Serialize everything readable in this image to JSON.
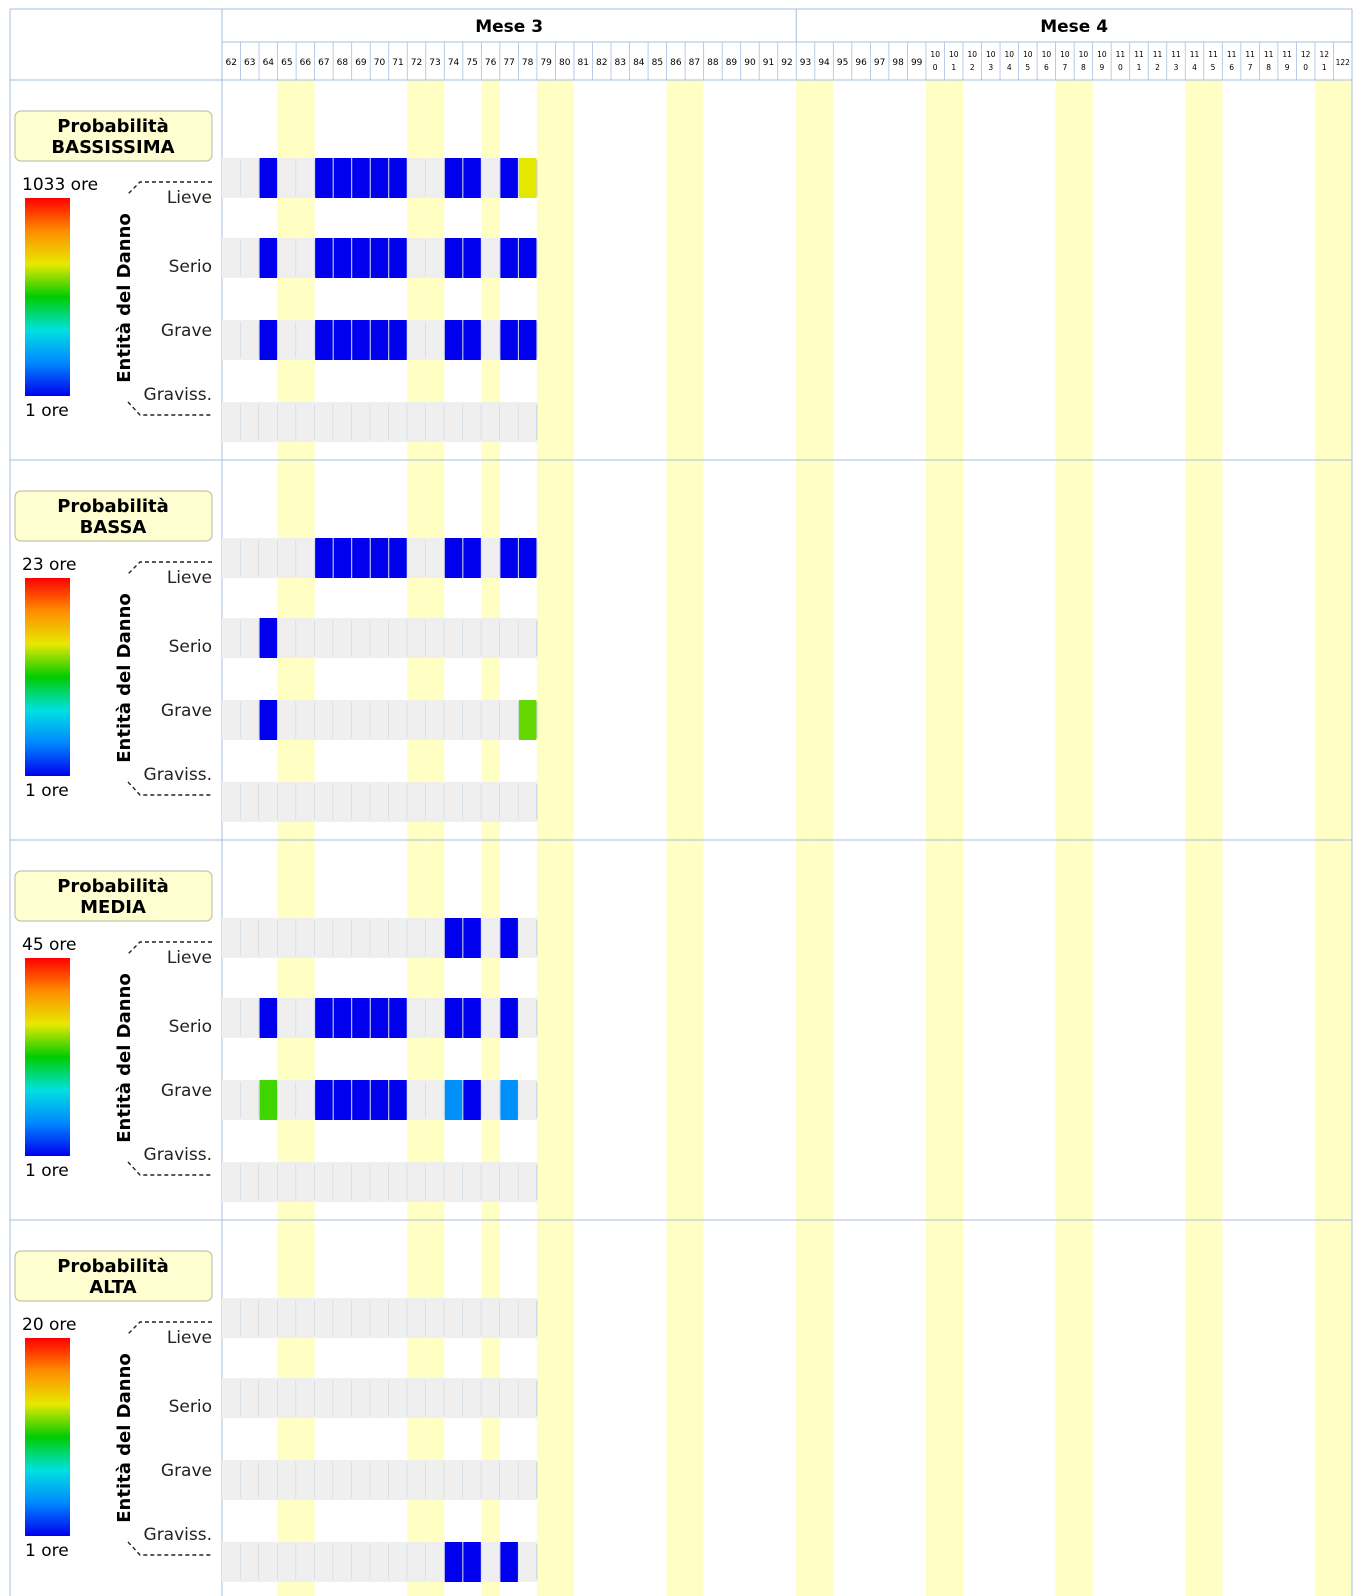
{
  "colors": {
    "weekend": "#ffffc4",
    "empty_cell": "#efefef",
    "cell_divider": "#bfcfe0",
    "grid": "#a7bfdf",
    "legend_fill": "#fefed0",
    "legend_border": "#b8b8a0",
    "scale": [
      "#ff0000",
      "#ff8c00",
      "#e8e800",
      "#00cc00",
      "#00e0e0",
      "#0088ff",
      "#0000ee"
    ]
  },
  "chart_data": {
    "type": "heatmap",
    "months": [
      {
        "label": "Mese 3",
        "from_day": 62,
        "to_day": 92
      },
      {
        "label": "Mese 4",
        "from_day": 93,
        "to_day": 122
      }
    ],
    "day_labels": [
      [
        "62"
      ],
      [
        "63"
      ],
      [
        "64"
      ],
      [
        "65"
      ],
      [
        "66"
      ],
      [
        "67"
      ],
      [
        "68"
      ],
      [
        "69"
      ],
      [
        "70"
      ],
      [
        "71"
      ],
      [
        "72"
      ],
      [
        "73"
      ],
      [
        "74"
      ],
      [
        "75"
      ],
      [
        "76"
      ],
      [
        "77"
      ],
      [
        "78"
      ],
      [
        "79"
      ],
      [
        "80"
      ],
      [
        "81"
      ],
      [
        "82"
      ],
      [
        "83"
      ],
      [
        "84"
      ],
      [
        "85"
      ],
      [
        "86"
      ],
      [
        "87"
      ],
      [
        "88"
      ],
      [
        "89"
      ],
      [
        "90"
      ],
      [
        "91"
      ],
      [
        "92"
      ],
      [
        "93"
      ],
      [
        "94"
      ],
      [
        "95"
      ],
      [
        "96"
      ],
      [
        "97"
      ],
      [
        "98"
      ],
      [
        "99"
      ],
      [
        "10",
        "0"
      ],
      [
        "10",
        "1"
      ],
      [
        "10",
        "2"
      ],
      [
        "10",
        "3"
      ],
      [
        "10",
        "4"
      ],
      [
        "10",
        "5"
      ],
      [
        "10",
        "6"
      ],
      [
        "10",
        "7"
      ],
      [
        "10",
        "8"
      ],
      [
        "10",
        "9"
      ],
      [
        "11",
        "0"
      ],
      [
        "11",
        "1"
      ],
      [
        "11",
        "2"
      ],
      [
        "11",
        "3"
      ],
      [
        "11",
        "4"
      ],
      [
        "11",
        "5"
      ],
      [
        "11",
        "6"
      ],
      [
        "11",
        "7"
      ],
      [
        "11",
        "8"
      ],
      [
        "11",
        "9"
      ],
      [
        "12",
        "0"
      ],
      [
        "12",
        "1"
      ],
      [
        "122"
      ]
    ],
    "weekend_days": [
      65,
      66,
      72,
      73,
      76,
      79,
      80,
      86,
      87,
      93,
      94,
      100,
      101,
      107,
      108,
      114,
      115,
      121,
      122
    ],
    "data_last_day": 78,
    "row_labels": [
      "Lieve",
      "Serio",
      "Grave",
      "Graviss."
    ],
    "axis_label": "Entità del Danno",
    "panels": [
      {
        "title_line1": "Probabilità",
        "title_line2": "BASSISSIMA",
        "scale_max": "1033 ore",
        "scale_min": "1 ore",
        "rows": {
          "Lieve": [
            [
              64,
              1
            ],
            [
              67,
              1
            ],
            [
              68,
              1
            ],
            [
              69,
              1
            ],
            [
              70,
              1
            ],
            [
              71,
              1
            ],
            [
              74,
              1
            ],
            [
              75,
              1
            ],
            [
              77,
              1
            ],
            [
              78,
              100
            ]
          ],
          "Serio": [
            [
              64,
              1
            ],
            [
              67,
              1
            ],
            [
              68,
              1
            ],
            [
              69,
              1
            ],
            [
              70,
              1
            ],
            [
              71,
              1
            ],
            [
              74,
              1
            ],
            [
              75,
              1
            ],
            [
              77,
              1
            ],
            [
              78,
              1
            ]
          ],
          "Grave": [
            [
              64,
              1
            ],
            [
              67,
              1
            ],
            [
              68,
              1
            ],
            [
              69,
              1
            ],
            [
              70,
              1
            ],
            [
              71,
              1
            ],
            [
              74,
              1
            ],
            [
              75,
              1
            ],
            [
              77,
              1
            ],
            [
              78,
              1
            ]
          ],
          "Graviss.": []
        }
      },
      {
        "title_line1": "Probabilità",
        "title_line2": "BASSA",
        "scale_max": "23 ore",
        "scale_min": "1 ore",
        "rows": {
          "Lieve": [
            [
              67,
              1
            ],
            [
              68,
              1
            ],
            [
              69,
              1
            ],
            [
              70,
              1
            ],
            [
              71,
              1
            ],
            [
              74,
              1
            ],
            [
              75,
              1
            ],
            [
              77,
              1
            ],
            [
              78,
              1
            ]
          ],
          "Serio": [
            [
              64,
              1
            ]
          ],
          "Grave": [
            [
              64,
              1
            ],
            [
              78,
              6
            ]
          ],
          "Graviss.": []
        }
      },
      {
        "title_line1": "Probabilità",
        "title_line2": "MEDIA",
        "scale_max": "45 ore",
        "scale_min": "1 ore",
        "rows": {
          "Lieve": [
            [
              74,
              1
            ],
            [
              75,
              1
            ],
            [
              77,
              1
            ]
          ],
          "Serio": [
            [
              64,
              1
            ],
            [
              67,
              1
            ],
            [
              68,
              1
            ],
            [
              69,
              1
            ],
            [
              70,
              1
            ],
            [
              71,
              1
            ],
            [
              74,
              1
            ],
            [
              75,
              1
            ],
            [
              77,
              1
            ]
          ],
          "Grave": [
            [
              64,
              8
            ],
            [
              67,
              1
            ],
            [
              68,
              1
            ],
            [
              69,
              1
            ],
            [
              70,
              1
            ],
            [
              71,
              1
            ],
            [
              74,
              2
            ],
            [
              75,
              1
            ],
            [
              77,
              2
            ]
          ],
          "Graviss.": []
        }
      },
      {
        "title_line1": "Probabilità",
        "title_line2": "ALTA",
        "scale_max": "20 ore",
        "scale_min": "1 ore",
        "rows": {
          "Lieve": [],
          "Serio": [],
          "Grave": [],
          "Graviss.": [
            [
              74,
              1
            ],
            [
              75,
              1
            ],
            [
              77,
              1
            ]
          ]
        }
      }
    ]
  }
}
